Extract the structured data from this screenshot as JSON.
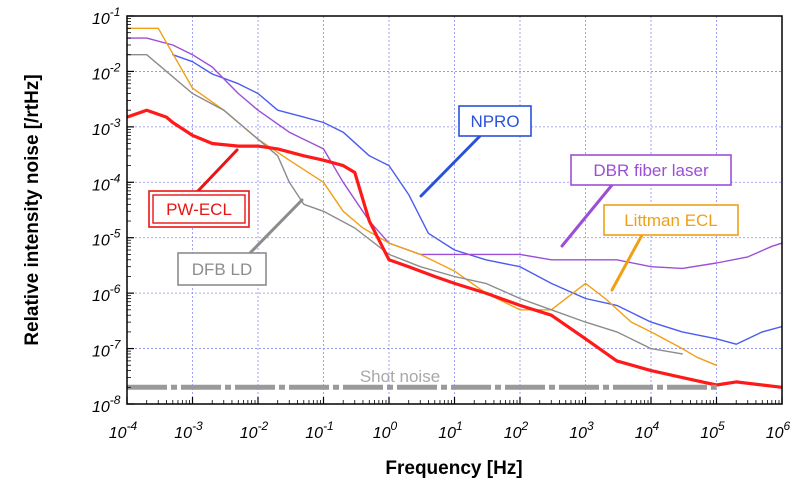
{
  "chart_data": {
    "type": "line",
    "xscale": "log",
    "yscale": "log",
    "xlim": [
      0.0001,
      1000000
    ],
    "ylim": [
      1e-08,
      0.1
    ],
    "xlabel": "Frequency [Hz]",
    "ylabel": "Relative intensity noise [/rtHz]",
    "grid": true,
    "x_ticks": [
      {
        "base": "10",
        "exp": "-4",
        "value": 0.0001
      },
      {
        "base": "10",
        "exp": "-3",
        "value": 0.001
      },
      {
        "base": "10",
        "exp": "-2",
        "value": 0.01
      },
      {
        "base": "10",
        "exp": "-1",
        "value": 0.1
      },
      {
        "base": "10",
        "exp": "0",
        "value": 1
      },
      {
        "base": "10",
        "exp": "1",
        "value": 10
      },
      {
        "base": "10",
        "exp": "2",
        "value": 100
      },
      {
        "base": "10",
        "exp": "3",
        "value": 1000
      },
      {
        "base": "10",
        "exp": "4",
        "value": 10000
      },
      {
        "base": "10",
        "exp": "5",
        "value": 100000
      },
      {
        "base": "10",
        "exp": "6",
        "value": 1000000
      }
    ],
    "y_ticks": [
      {
        "base": "10",
        "exp": "-8",
        "value": 1e-08
      },
      {
        "base": "10",
        "exp": "-7",
        "value": 1e-07
      },
      {
        "base": "10",
        "exp": "-6",
        "value": 1e-06
      },
      {
        "base": "10",
        "exp": "-5",
        "value": 1e-05
      },
      {
        "base": "10",
        "exp": "-4",
        "value": 0.0001
      },
      {
        "base": "10",
        "exp": "-3",
        "value": 0.001
      },
      {
        "base": "10",
        "exp": "-2",
        "value": 0.01
      },
      {
        "base": "10",
        "exp": "-1",
        "value": 0.1
      }
    ],
    "series": [
      {
        "name": "NPRO",
        "color": "#4a5cf0",
        "x": [
          0.0005,
          0.001,
          0.002,
          0.005,
          0.01,
          0.02,
          0.05,
          0.1,
          0.2,
          0.5,
          1,
          2,
          4,
          10,
          30,
          100,
          300,
          1000,
          3000,
          10000,
          30000,
          100000,
          200000,
          500000,
          1000000
        ],
        "y": [
          0.02,
          0.015,
          0.009,
          0.006,
          0.004,
          0.002,
          0.0015,
          0.0012,
          0.0008,
          0.0003,
          0.0002,
          6e-05,
          1.2e-05,
          6e-06,
          4e-06,
          3e-06,
          1.5e-06,
          8e-07,
          6e-07,
          3e-07,
          2e-07,
          1.5e-07,
          1.2e-07,
          2e-07,
          2.5e-07
        ]
      },
      {
        "name": "DBR fiber laser",
        "color": "#9b4fd6",
        "x": [
          0.0001,
          0.0002,
          0.0005,
          0.001,
          0.002,
          0.005,
          0.01,
          0.03,
          0.1,
          0.2,
          0.5,
          1,
          3,
          10,
          30,
          100,
          300,
          1000,
          3000,
          10000,
          30000,
          100000,
          300000,
          700000,
          1000000
        ],
        "y": [
          0.04,
          0.04,
          0.03,
          0.02,
          0.012,
          0.004,
          0.002,
          0.0008,
          0.0004,
          0.0001,
          2e-05,
          8e-06,
          5e-06,
          5e-06,
          5e-06,
          5e-06,
          4e-06,
          4e-06,
          4e-06,
          3e-06,
          2.8e-06,
          3.5e-06,
          4.5e-06,
          7e-06,
          8e-06
        ]
      },
      {
        "name": "Littman ECL",
        "color": "#f0a015",
        "x": [
          0.0001,
          0.0003,
          0.001,
          0.003,
          0.01,
          0.03,
          0.1,
          0.2,
          0.4,
          1,
          3,
          10,
          30,
          100,
          300,
          1000,
          2000,
          5000,
          10000,
          30000,
          50000,
          100000
        ],
        "y": [
          0.06,
          0.06,
          0.005,
          0.002,
          0.0006,
          0.00025,
          0.0001,
          3e-05,
          1.5e-05,
          8e-06,
          5e-06,
          2.5e-06,
          1e-06,
          5e-07,
          5e-07,
          1.5e-06,
          8e-07,
          3e-07,
          2e-07,
          1e-07,
          7e-08,
          5e-08
        ]
      },
      {
        "name": "DFB LD",
        "color": "#8c8c8c",
        "x": [
          0.0001,
          0.0002,
          0.0005,
          0.001,
          0.003,
          0.01,
          0.02,
          0.03,
          0.05,
          0.1,
          0.3,
          1,
          3,
          10,
          30,
          100,
          300,
          1000,
          3000,
          10000,
          30000
        ],
        "y": [
          0.02,
          0.02,
          0.008,
          0.004,
          0.002,
          0.0006,
          0.0003,
          0.0001,
          4e-05,
          3e-05,
          1.5e-05,
          5e-06,
          3e-06,
          2e-06,
          1.5e-06,
          8e-07,
          5e-07,
          3e-07,
          2e-07,
          1e-07,
          8e-08
        ]
      },
      {
        "name": "PW-ECL",
        "color": "#ff1a1a",
        "x": [
          0.0001,
          0.0002,
          0.0004,
          0.0005,
          0.001,
          0.002,
          0.005,
          0.01,
          0.02,
          0.05,
          0.1,
          0.2,
          0.3,
          0.5,
          1,
          2,
          5,
          10,
          30,
          100,
          300,
          1000,
          3000,
          10000,
          30000,
          100000,
          200000,
          500000,
          1000000
        ],
        "y": [
          0.0015,
          0.002,
          0.0015,
          0.0012,
          0.0007,
          0.0005,
          0.00045,
          0.00045,
          0.0004,
          0.0003,
          0.00025,
          0.0002,
          0.00015,
          2e-05,
          4e-06,
          3e-06,
          2e-06,
          1.5e-06,
          1e-06,
          6e-07,
          4e-07,
          1.5e-07,
          6e-08,
          4e-08,
          3e-08,
          2.2e-08,
          2.5e-08,
          2.2e-08,
          2e-08
        ]
      },
      {
        "name": "Shot noise",
        "color": "#9a9a9a",
        "x": [
          0.0001,
          100000
        ],
        "y": [
          2e-08,
          2e-08
        ]
      }
    ],
    "annotations": [
      {
        "text": "NPRO",
        "color": "#2a52d9"
      },
      {
        "text": "DBR fiber laser",
        "color": "#9b4fd6"
      },
      {
        "text": "Littman ECL",
        "color": "#f0a015"
      },
      {
        "text": "PW-ECL",
        "color": "#e81515"
      },
      {
        "text": "DFB LD",
        "color": "#8c8c8c"
      },
      {
        "text": "Shot noise",
        "color": "#a8a8a8"
      }
    ]
  }
}
